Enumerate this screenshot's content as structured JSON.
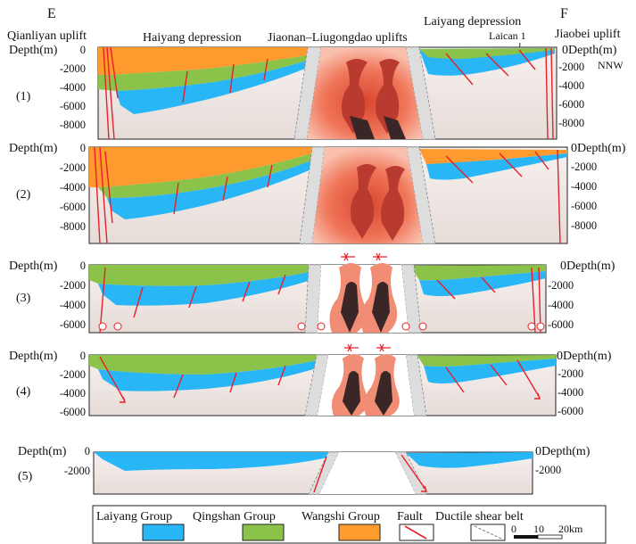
{
  "header": {
    "left_letter": "E",
    "right_letter": "F",
    "regions": [
      "Qianliyan uplift",
      "Haiyang depression",
      "Jiaonan–Liugongdao uplifts",
      "Laiyang depression",
      "Jiaobei uplift"
    ],
    "well": "Laican 1",
    "direction": "NNW"
  },
  "sections": [
    {
      "label": "(1)",
      "left_title": "Depth(m)",
      "right_title": "0Depth(m)",
      "left_ticks": [
        "0",
        "-2000",
        "-4000",
        "-6000",
        "-8000"
      ],
      "right_ticks": [
        "-2000",
        "-4000",
        "-6000",
        "-8000"
      ]
    },
    {
      "label": "(2)",
      "left_title": "Depth(m)",
      "right_title": "0Depth(m)",
      "left_ticks": [
        "0",
        "-2000",
        "-4000",
        "-6000",
        "-8000"
      ],
      "right_ticks": [
        "-2000",
        "-4000",
        "-6000",
        "-8000"
      ]
    },
    {
      "label": "(3)",
      "left_title": "Depth(m)",
      "right_title": "0Depth(m)",
      "left_ticks": [
        "0",
        "-2000",
        "-4000",
        "-6000"
      ],
      "right_ticks": [
        "-2000",
        "-4000",
        "-6000"
      ]
    },
    {
      "label": "(4)",
      "left_title": "Depth(m)",
      "right_title": "0Depth(m)",
      "left_ticks": [
        "0",
        "-2000",
        "-4000",
        "-6000"
      ],
      "right_ticks": [
        "-2000",
        "-4000",
        "-6000"
      ]
    },
    {
      "label": "(5)",
      "left_title": "Depth(m)",
      "right_title": "0Depth(m)",
      "left_ticks": [
        "0",
        "-2000"
      ],
      "right_ticks": [
        "-2000"
      ]
    }
  ],
  "legend": {
    "items": [
      {
        "label": "Laiyang Group",
        "color": "#29b6f6"
      },
      {
        "label": "Qingshan Group",
        "color": "#8bc34a"
      },
      {
        "label": "Wangshi Group",
        "color": "#ff9a2e"
      },
      {
        "label": "Fault"
      },
      {
        "label": "Ductile shear belt"
      }
    ],
    "scale": [
      "0",
      "10",
      "20km"
    ]
  },
  "colors": {
    "laiyang": "#29b6f6",
    "qingshan": "#8bc34a",
    "wangshi": "#ff9a2e",
    "basement": "#f1e9e6",
    "fault": "#e8202a",
    "magma_outer": "#f8b3a0",
    "magma_mid": "#ef6a4e",
    "magma_inner": "#b93a2f",
    "magma_core": "#3a2626"
  }
}
